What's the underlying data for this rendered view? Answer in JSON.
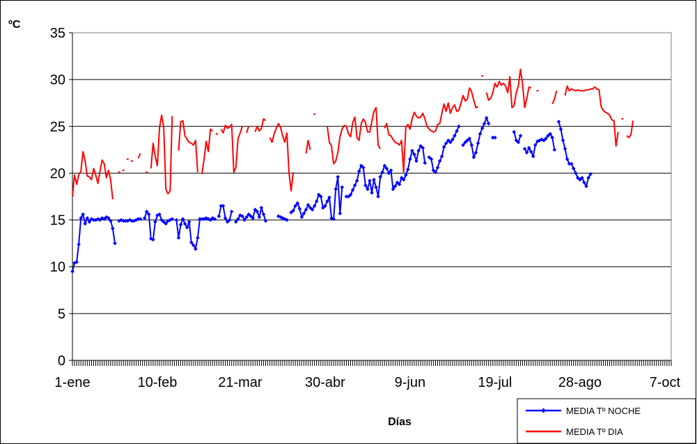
{
  "chart_data": {
    "type": "line",
    "xlabel": "Días",
    "ylabel": "ºC",
    "ylim": [
      0,
      35
    ],
    "yticks": [
      0,
      5,
      10,
      15,
      20,
      25,
      30,
      35
    ],
    "xlim": [
      1,
      283
    ],
    "xticks": [
      {
        "day": 1,
        "label": "1-ene"
      },
      {
        "day": 41,
        "label": "10-feb"
      },
      {
        "day": 80,
        "label": "21-mar"
      },
      {
        "day": 120,
        "label": "30-abr"
      },
      {
        "day": 160,
        "label": "9-jun"
      },
      {
        "day": 200,
        "label": "19-jul"
      },
      {
        "day": 240,
        "label": "28-ago"
      },
      {
        "day": 280,
        "label": "7-oct"
      }
    ],
    "grid": true,
    "legend": "bottom-right",
    "series": [
      {
        "name": "MEDIA Tº NOCHE",
        "color": "#0000ff",
        "marker": "diamond",
        "values": [
          9.5,
          10.4,
          10.5,
          12.4,
          15.2,
          15.6,
          14.6,
          15.2,
          14.8,
          15.1,
          15.0,
          15.0,
          15.1,
          15.0,
          15.2,
          15.1,
          15.3,
          15.2,
          14.9,
          14.1,
          12.5,
          null,
          14.9,
          15.0,
          14.9,
          14.9,
          14.9,
          15.0,
          14.9,
          14.9,
          15.0,
          15.1,
          15.1,
          null,
          15.2,
          15.9,
          15.6,
          13.0,
          12.9,
          14.8,
          15.5,
          15.6,
          15.0,
          14.8,
          14.6,
          14.9,
          15.0,
          15.1,
          null,
          15.0,
          13.1,
          14.5,
          15.1,
          14.6,
          14.2,
          14.8,
          12.6,
          12.3,
          11.9,
          13.1,
          15.1,
          15.1,
          15.1,
          15.2,
          15.1,
          15.0,
          15.2,
          15.1,
          null,
          15.4,
          16.5,
          16.5,
          15.2,
          14.8,
          15.0,
          15.9,
          null,
          14.8,
          15.1,
          15.5,
          15.4,
          15.0,
          15.3,
          15.6,
          15.4,
          15.2,
          16.1,
          15.9,
          15.3,
          16.3,
          15.6,
          14.9,
          null,
          null,
          null,
          null,
          null,
          15.4,
          15.3,
          15.2,
          15.1,
          15.0,
          null,
          15.8,
          16.0,
          16.5,
          16.8,
          16.2,
          15.3,
          15.7,
          16.1,
          16.6,
          16.3,
          16.1,
          16.5,
          17.0,
          17.7,
          17.5,
          16.3,
          16.5,
          17.0,
          17.4,
          15.2,
          15.1,
          18.3,
          19.6,
          15.7,
          18.5,
          null,
          17.5,
          17.5,
          17.7,
          18.2,
          18.7,
          19.2,
          20.2,
          20.8,
          20.6,
          18.7,
          18.3,
          19.2,
          17.9,
          19.3,
          18.5,
          17.5,
          19.6,
          20.1,
          20.8,
          20.5,
          20.0,
          20.3,
          18.3,
          18.6,
          19.0,
          18.8,
          19.5,
          19.3,
          19.8,
          20.4,
          21.5,
          22.4,
          22.0,
          21.3,
          22.4,
          22.9,
          22.7,
          21.1,
          null,
          21.7,
          21.5,
          20.3,
          20.1,
          20.6,
          21.3,
          21.8,
          22.8,
          23.2,
          23.5,
          23.3,
          23.6,
          24.0,
          24.5,
          25.0,
          null,
          23.0,
          23.3,
          23.5,
          23.7,
          23.0,
          21.7,
          22.2,
          23.2,
          24.2,
          24.8,
          25.3,
          25.9,
          25.3,
          null,
          23.8,
          23.8,
          null,
          null,
          null,
          null,
          null,
          null,
          null,
          null,
          24.4,
          23.5,
          23.3,
          24.0,
          null,
          22.6,
          22.2,
          22.7,
          22.3,
          21.8,
          23.0,
          23.4,
          23.5,
          23.6,
          23.5,
          23.7,
          24.0,
          24.2,
          23.8,
          22.5,
          null,
          25.5,
          24.7,
          23.5,
          22.6,
          21.5,
          21.0,
          21.0,
          20.5,
          20.0,
          19.5,
          19.3,
          19.5,
          19.0,
          18.6,
          19.5,
          19.9
        ]
      },
      {
        "name": "MEDIA Tº DIA",
        "color": "#ff0000",
        "marker": "none",
        "values": [
          17.5,
          19.8,
          18.8,
          19.8,
          20.2,
          22.3,
          21.3,
          19.7,
          19.6,
          19.3,
          20.5,
          19.8,
          18.9,
          20.2,
          21.4,
          21.0,
          19.5,
          20.3,
          19.3,
          17.2,
          null,
          null,
          20.1,
          null,
          20.3,
          null,
          21.5,
          null,
          21.3,
          null,
          null,
          21.6,
          22.1,
          null,
          null,
          20.1,
          null,
          20.5,
          23.2,
          21.8,
          20.8,
          24.8,
          26.2,
          24.9,
          18.3,
          17.8,
          18.1,
          26.1,
          null,
          null,
          22.4,
          25.5,
          25.6,
          24.0,
          23.6,
          23.3,
          23.2,
          23.0,
          23.5,
          20.1,
          null,
          19.9,
          21.5,
          23.4,
          22.3,
          24.7,
          24.5,
          null,
          24.2,
          null,
          24.7,
          24.3,
          25.1,
          24.8,
          24.9,
          25.2,
          20.1,
          20.6,
          23.7,
          24.3,
          25.0,
          null,
          24.3,
          25.0,
          null,
          null,
          24.4,
          25.0,
          24.5,
          24.8,
          25.8,
          25.6,
          null,
          23.8,
          23.3,
          24.2,
          24.8,
          25.3,
          24.9,
          24.0,
          23.3,
          24.3,
          20.0,
          18.1,
          20.1,
          null,
          null,
          null,
          null,
          null,
          22.1,
          23.5,
          22.5,
          null,
          26.3,
          null,
          null,
          null,
          null,
          null,
          25.0,
          23.3,
          22.9,
          21.0,
          21.3,
          22.2,
          23.9,
          24.7,
          25.1,
          25.0,
          24.2,
          23.9,
          25.4,
          26.0,
          23.8,
          23.5,
          25.3,
          25.8,
          25.4,
          24.4,
          24.4,
          25.5,
          26.6,
          27.0,
          23.0,
          22.6,
          null,
          24.8,
          25.3,
          24.1,
          24.0,
          23.6,
          23.3,
          23.2,
          23.0,
          23.5,
          20.1,
          24.9,
          25.2,
          24.7,
          25.8,
          26.5,
          26.1,
          25.9,
          26.0,
          26.4,
          25.8,
          25.0,
          24.7,
          24.5,
          24.4,
          24.5,
          25.2,
          25.3,
          26.4,
          27.4,
          26.6,
          27.5,
          26.4,
          27.0,
          27.3,
          26.6,
          26.7,
          27.5,
          28.3,
          27.7,
          27.9,
          29.1,
          28.7,
          27.8,
          27.0,
          27.1,
          null,
          30.4,
          null,
          28.6,
          27.8,
          28.0,
          28.6,
          29.6,
          29.2,
          29.8,
          29.4,
          29.6,
          29.3,
          28.6,
          30.3,
          27.0,
          27.2,
          28.6,
          29.3,
          31.1,
          29.5,
          27.0,
          28.0,
          29.2,
          29.1,
          null,
          null,
          28.8,
          null,
          null,
          null,
          null,
          null,
          null,
          27.4,
          27.9,
          28.8,
          null,
          null,
          null,
          28.3,
          29.3,
          28.8,
          29.0,
          28.9,
          28.8,
          28.9,
          28.8,
          28.8,
          28.8,
          28.9,
          28.9,
          29.0,
          29.0,
          29.2,
          29.0,
          28.9,
          27.1,
          26.7,
          26.5,
          26.4,
          26.2,
          25.7,
          25.6,
          22.9,
          24.4,
          null,
          25.8,
          null,
          24.0,
          23.8,
          24.1,
          25.6
        ]
      }
    ]
  }
}
